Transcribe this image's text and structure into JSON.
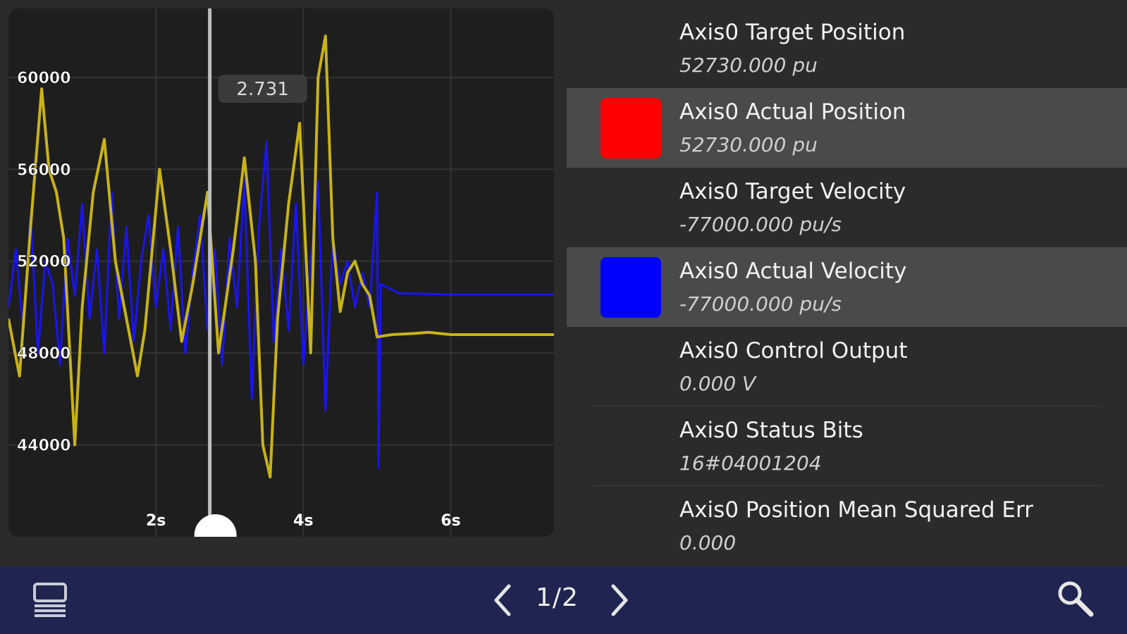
{
  "chart": {
    "cursor_readout": "2.731",
    "y_tick_labels": [
      "60000",
      "56000",
      "52000",
      "48000",
      "44000"
    ],
    "x_tick_labels": [
      "2s",
      "4s",
      "6s"
    ],
    "colors": {
      "gold": "#c8b316",
      "blue": "#1a14f0",
      "cursor": "#bfbfbf"
    }
  },
  "chart_data": {
    "type": "line",
    "title": "",
    "xlabel": "",
    "ylabel": "",
    "xlim": [
      0,
      7.4
    ],
    "ylim": [
      40000,
      63000
    ],
    "cursor_x": 2.731,
    "x_ticks": [
      2,
      4,
      6
    ],
    "y_ticks": [
      60000,
      56000,
      52000,
      48000,
      44000
    ],
    "grid": true,
    "series": [
      {
        "color": "#c8b316",
        "points": [
          [
            0.0,
            49500
          ],
          [
            0.15,
            47000
          ],
          [
            0.3,
            53500
          ],
          [
            0.45,
            59500
          ],
          [
            0.55,
            56000
          ],
          [
            0.65,
            55000
          ],
          [
            0.75,
            53000
          ],
          [
            0.9,
            44000
          ],
          [
            1.0,
            50000
          ],
          [
            1.15,
            55000
          ],
          [
            1.3,
            57300
          ],
          [
            1.45,
            52000
          ],
          [
            1.6,
            49500
          ],
          [
            1.75,
            47000
          ],
          [
            1.85,
            49000
          ],
          [
            2.05,
            56000
          ],
          [
            2.2,
            52500
          ],
          [
            2.35,
            48500
          ],
          [
            2.5,
            51000
          ],
          [
            2.7,
            55000
          ],
          [
            2.85,
            48000
          ],
          [
            3.05,
            52500
          ],
          [
            3.2,
            56500
          ],
          [
            3.35,
            52000
          ],
          [
            3.45,
            44000
          ],
          [
            3.55,
            42600
          ],
          [
            3.65,
            49500
          ],
          [
            3.8,
            54500
          ],
          [
            3.95,
            58000
          ],
          [
            4.1,
            48000
          ],
          [
            4.2,
            60000
          ],
          [
            4.3,
            61800
          ],
          [
            4.4,
            53000
          ],
          [
            4.5,
            49800
          ],
          [
            4.6,
            51500
          ],
          [
            4.7,
            52000
          ],
          [
            4.8,
            51000
          ],
          [
            4.9,
            50500
          ],
          [
            5.0,
            48700
          ],
          [
            5.2,
            48800
          ],
          [
            5.5,
            48850
          ],
          [
            5.7,
            48900
          ],
          [
            6.0,
            48800
          ],
          [
            7.4,
            48800
          ]
        ]
      },
      {
        "color": "#1a14f0",
        "points": [
          [
            0.0,
            50000
          ],
          [
            0.1,
            52500
          ],
          [
            0.2,
            49000
          ],
          [
            0.3,
            54000
          ],
          [
            0.4,
            48000
          ],
          [
            0.5,
            52000
          ],
          [
            0.6,
            51000
          ],
          [
            0.7,
            47500
          ],
          [
            0.8,
            53000
          ],
          [
            0.9,
            50500
          ],
          [
            1.0,
            54500
          ],
          [
            1.1,
            49500
          ],
          [
            1.2,
            52500
          ],
          [
            1.3,
            48000
          ],
          [
            1.4,
            55000
          ],
          [
            1.5,
            49500
          ],
          [
            1.6,
            53500
          ],
          [
            1.7,
            48500
          ],
          [
            1.8,
            52000
          ],
          [
            1.9,
            54000
          ],
          [
            2.0,
            50000
          ],
          [
            2.1,
            52500
          ],
          [
            2.2,
            49000
          ],
          [
            2.3,
            53500
          ],
          [
            2.4,
            48000
          ],
          [
            2.5,
            51500
          ],
          [
            2.6,
            54000
          ],
          [
            2.7,
            49000
          ],
          [
            2.8,
            52500
          ],
          [
            2.9,
            47500
          ],
          [
            3.0,
            53000
          ],
          [
            3.1,
            50000
          ],
          [
            3.2,
            55500
          ],
          [
            3.3,
            46000
          ],
          [
            3.4,
            53500
          ],
          [
            3.5,
            57200
          ],
          [
            3.6,
            48500
          ],
          [
            3.7,
            52500
          ],
          [
            3.8,
            49000
          ],
          [
            3.9,
            54500
          ],
          [
            4.0,
            47500
          ],
          [
            4.1,
            52000
          ],
          [
            4.2,
            55500
          ],
          [
            4.3,
            45500
          ],
          [
            4.4,
            53000
          ],
          [
            4.5,
            51000
          ],
          [
            4.6,
            52000
          ],
          [
            4.7,
            50000
          ],
          [
            4.8,
            51500
          ],
          [
            4.9,
            50000
          ],
          [
            5.0,
            55000
          ],
          [
            5.02,
            43000
          ],
          [
            5.05,
            51000
          ],
          [
            5.3,
            50600
          ],
          [
            6.0,
            50550
          ],
          [
            7.4,
            50550
          ]
        ]
      }
    ]
  },
  "list": {
    "items": [
      {
        "label": "Axis0 Target Position",
        "value": "52730.000 pu",
        "swatch": null
      },
      {
        "label": "Axis0 Actual Position",
        "value": "52730.000 pu",
        "swatch": "#ff0000"
      },
      {
        "label": "Axis0 Target Velocity",
        "value": "-77000.000 pu/s",
        "swatch": null
      },
      {
        "label": "Axis0 Actual Velocity",
        "value": "-77000.000 pu/s",
        "swatch": "#0000ff"
      },
      {
        "label": "Axis0 Control Output",
        "value": "0.000 V",
        "swatch": null
      },
      {
        "label": "Axis0 Status Bits",
        "value": "16#04001204",
        "swatch": null
      },
      {
        "label": "Axis0 Position Mean Squared Err",
        "value": "0.000",
        "swatch": null
      }
    ]
  },
  "bottom_bar": {
    "page_indicator": "1/2",
    "icons": [
      "list-view-icon",
      "chevron-left-icon",
      "chevron-right-icon",
      "search-icon"
    ]
  }
}
